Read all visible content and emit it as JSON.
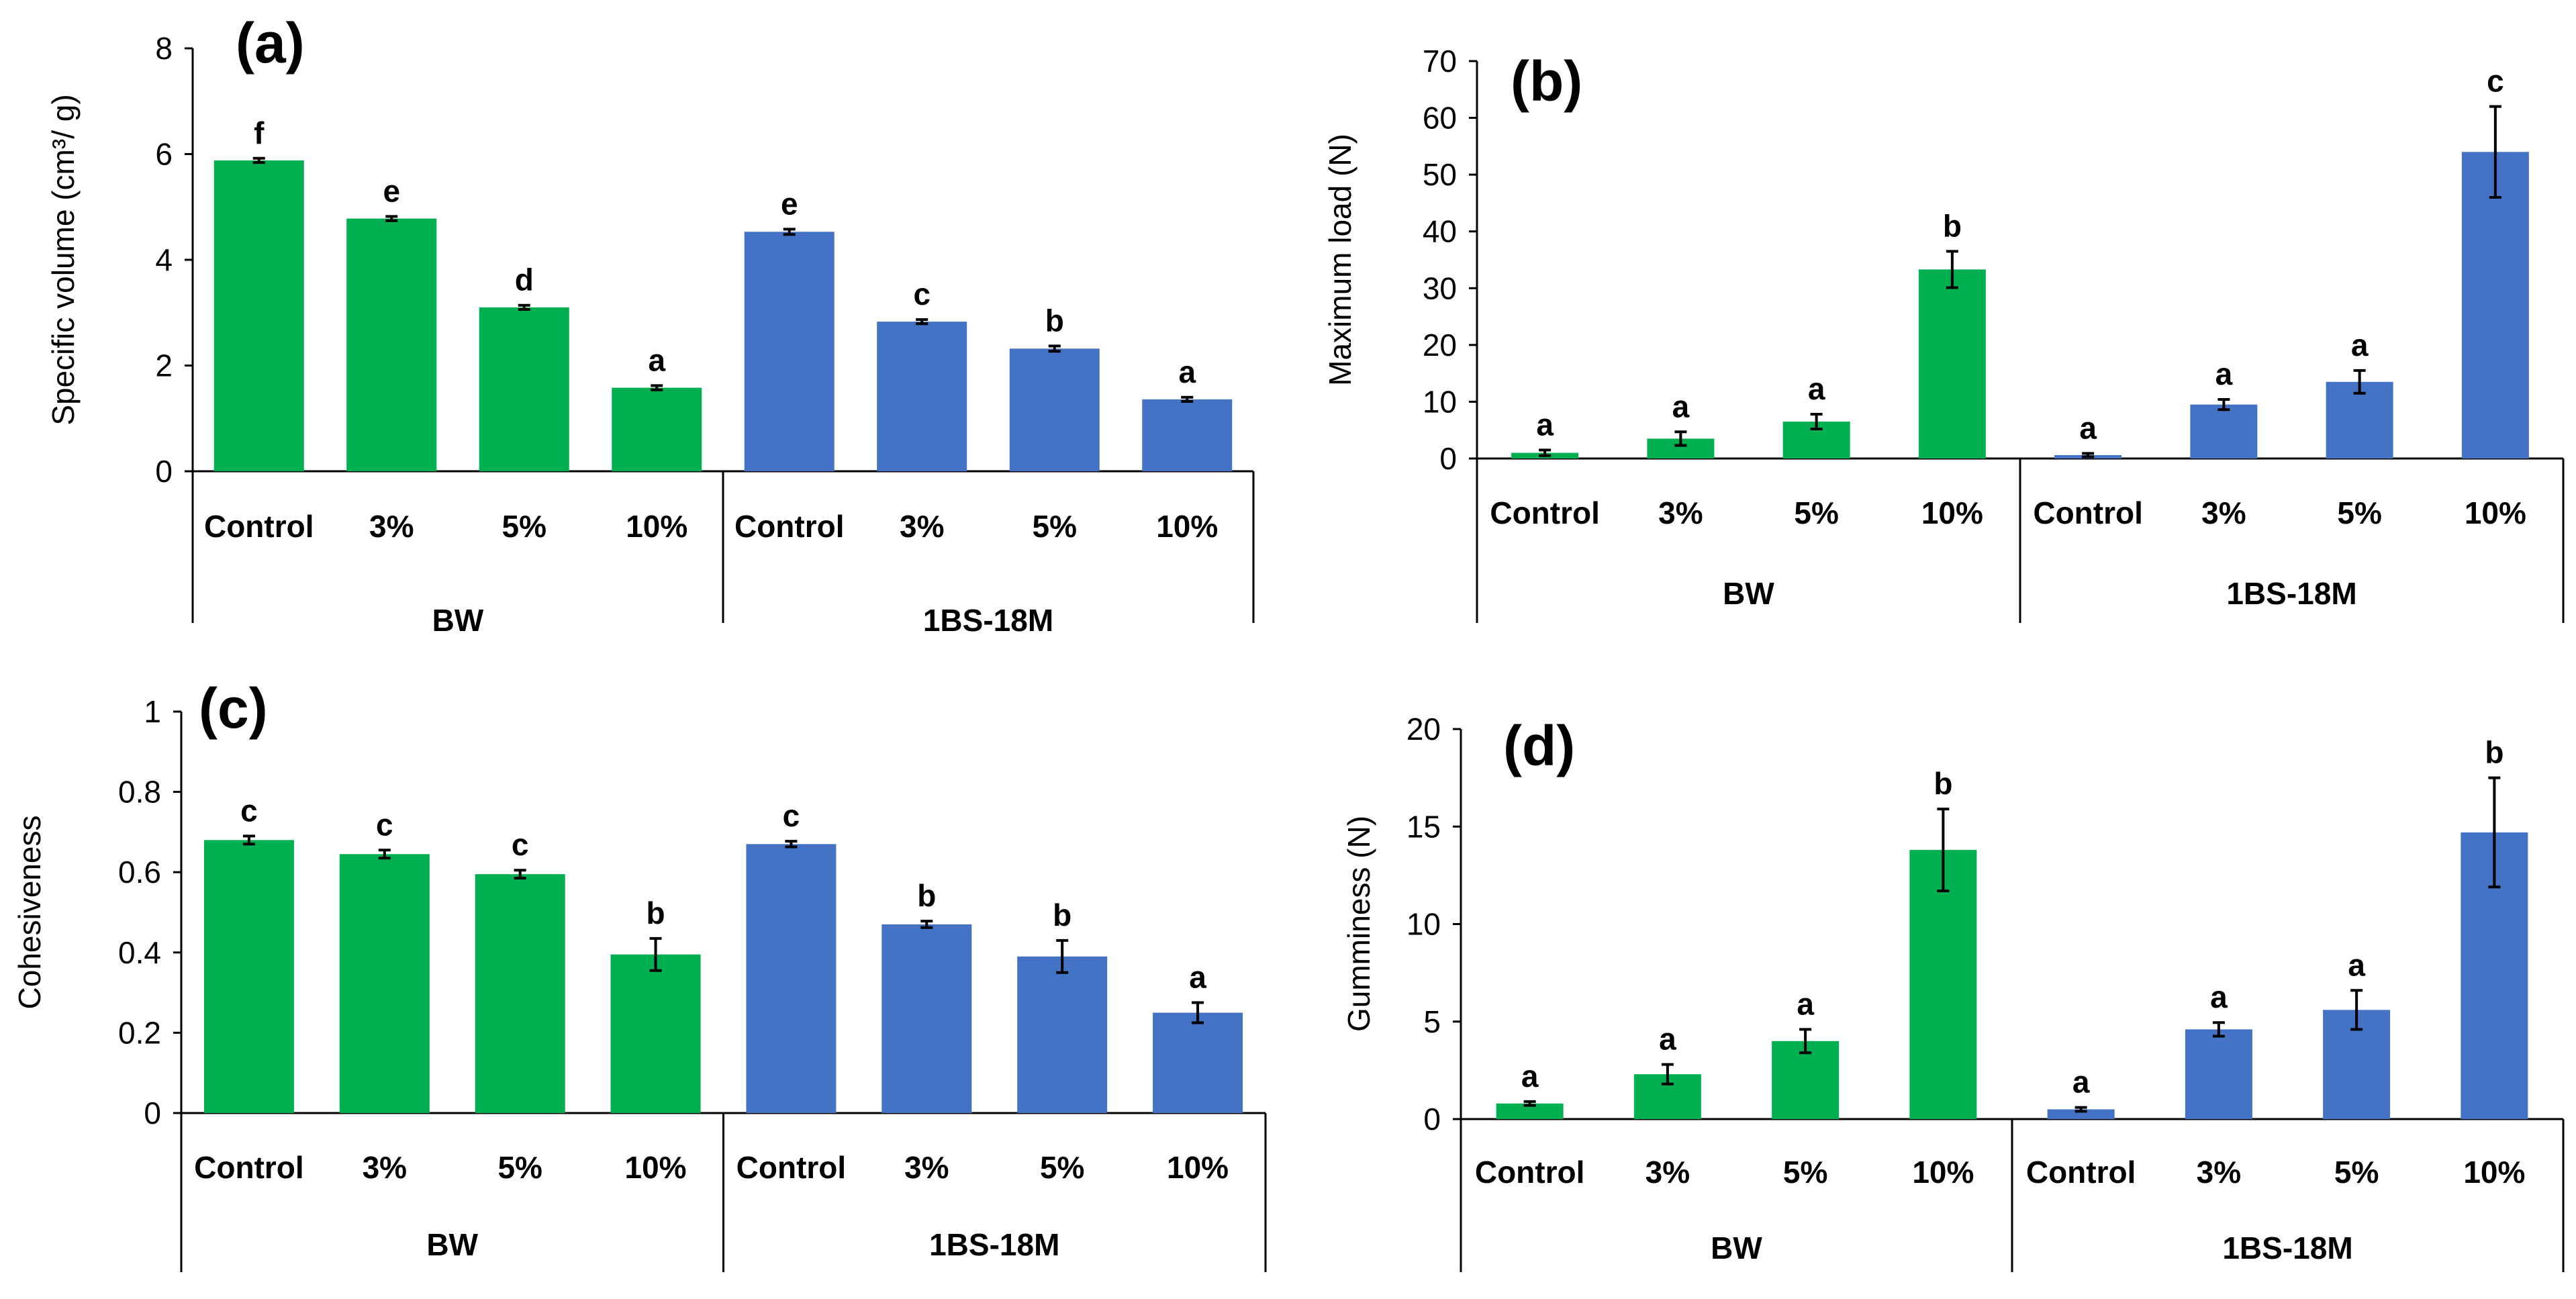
{
  "colors": {
    "bw": "#00b050",
    "bs": "#4472c4",
    "axis": "#000000"
  },
  "chart_data": [
    {
      "id": "a",
      "type": "bar",
      "panel_label": "(a)",
      "ylabel": "Specific volume (cm³/ g)",
      "ylim": [
        0,
        8
      ],
      "yticks": [
        0,
        2,
        4,
        6,
        8
      ],
      "groups": [
        "BW",
        "1BS-18M"
      ],
      "categories": [
        "Control",
        "3%",
        "5%",
        "10%"
      ],
      "series": [
        {
          "name": "BW",
          "values": [
            5.88,
            4.78,
            3.1,
            1.58
          ],
          "errors": [
            0.04,
            0.04,
            0.04,
            0.04
          ],
          "labels": [
            "f",
            "e",
            "d",
            "a"
          ]
        },
        {
          "name": "1BS-18M",
          "values": [
            4.53,
            2.83,
            2.32,
            1.36
          ],
          "errors": [
            0.05,
            0.04,
            0.05,
            0.04
          ],
          "labels": [
            "e",
            "c",
            "b",
            "a"
          ]
        }
      ]
    },
    {
      "id": "b",
      "type": "bar",
      "panel_label": "(b)",
      "ylabel": "Maximum load (N)",
      "ylim": [
        0,
        70
      ],
      "yticks": [
        0,
        10,
        20,
        30,
        40,
        50,
        60,
        70
      ],
      "groups": [
        "BW",
        "1BS-18M"
      ],
      "categories": [
        "Control",
        "3%",
        "5%",
        "10%"
      ],
      "series": [
        {
          "name": "BW",
          "values": [
            1.0,
            3.5,
            6.5,
            33.3
          ],
          "errors": [
            0.5,
            1.2,
            1.3,
            3.2
          ],
          "labels": [
            "a",
            "a",
            "a",
            "b"
          ]
        },
        {
          "name": "1BS-18M",
          "values": [
            0.6,
            9.5,
            13.5,
            54.0
          ],
          "errors": [
            0.3,
            0.9,
            2.0,
            8.0
          ],
          "labels": [
            "a",
            "a",
            "a",
            "c"
          ]
        }
      ]
    },
    {
      "id": "c",
      "type": "bar",
      "panel_label": "(c)",
      "ylabel": "Cohesiveness",
      "ylim": [
        0,
        1
      ],
      "yticks": [
        0,
        0.2,
        0.4,
        0.6,
        0.8,
        1
      ],
      "groups": [
        "BW",
        "1BS-18M"
      ],
      "categories": [
        "Control",
        "3%",
        "5%",
        "10%"
      ],
      "series": [
        {
          "name": "BW",
          "values": [
            0.68,
            0.645,
            0.595,
            0.395
          ],
          "errors": [
            0.01,
            0.01,
            0.01,
            0.04
          ],
          "labels": [
            "c",
            "c",
            "c",
            "b"
          ]
        },
        {
          "name": "1BS-18M",
          "values": [
            0.67,
            0.47,
            0.39,
            0.25
          ],
          "errors": [
            0.007,
            0.008,
            0.04,
            0.025
          ],
          "labels": [
            "c",
            "b",
            "b",
            "a"
          ]
        }
      ]
    },
    {
      "id": "d",
      "type": "bar",
      "panel_label": "(d)",
      "ylabel": "Gumminess (N)",
      "ylim": [
        0,
        20
      ],
      "yticks": [
        0,
        5,
        10,
        15,
        20
      ],
      "groups": [
        "BW",
        "1BS-18M"
      ],
      "categories": [
        "Control",
        "3%",
        "5%",
        "10%"
      ],
      "series": [
        {
          "name": "BW",
          "values": [
            0.8,
            2.3,
            4.0,
            13.8
          ],
          "errors": [
            0.1,
            0.5,
            0.6,
            2.1
          ],
          "labels": [
            "a",
            "a",
            "a",
            "b"
          ]
        },
        {
          "name": "1BS-18M",
          "values": [
            0.5,
            4.6,
            5.6,
            14.7
          ],
          "errors": [
            0.1,
            0.35,
            1.0,
            2.8
          ],
          "labels": [
            "a",
            "a",
            "a",
            "b"
          ]
        }
      ]
    }
  ]
}
